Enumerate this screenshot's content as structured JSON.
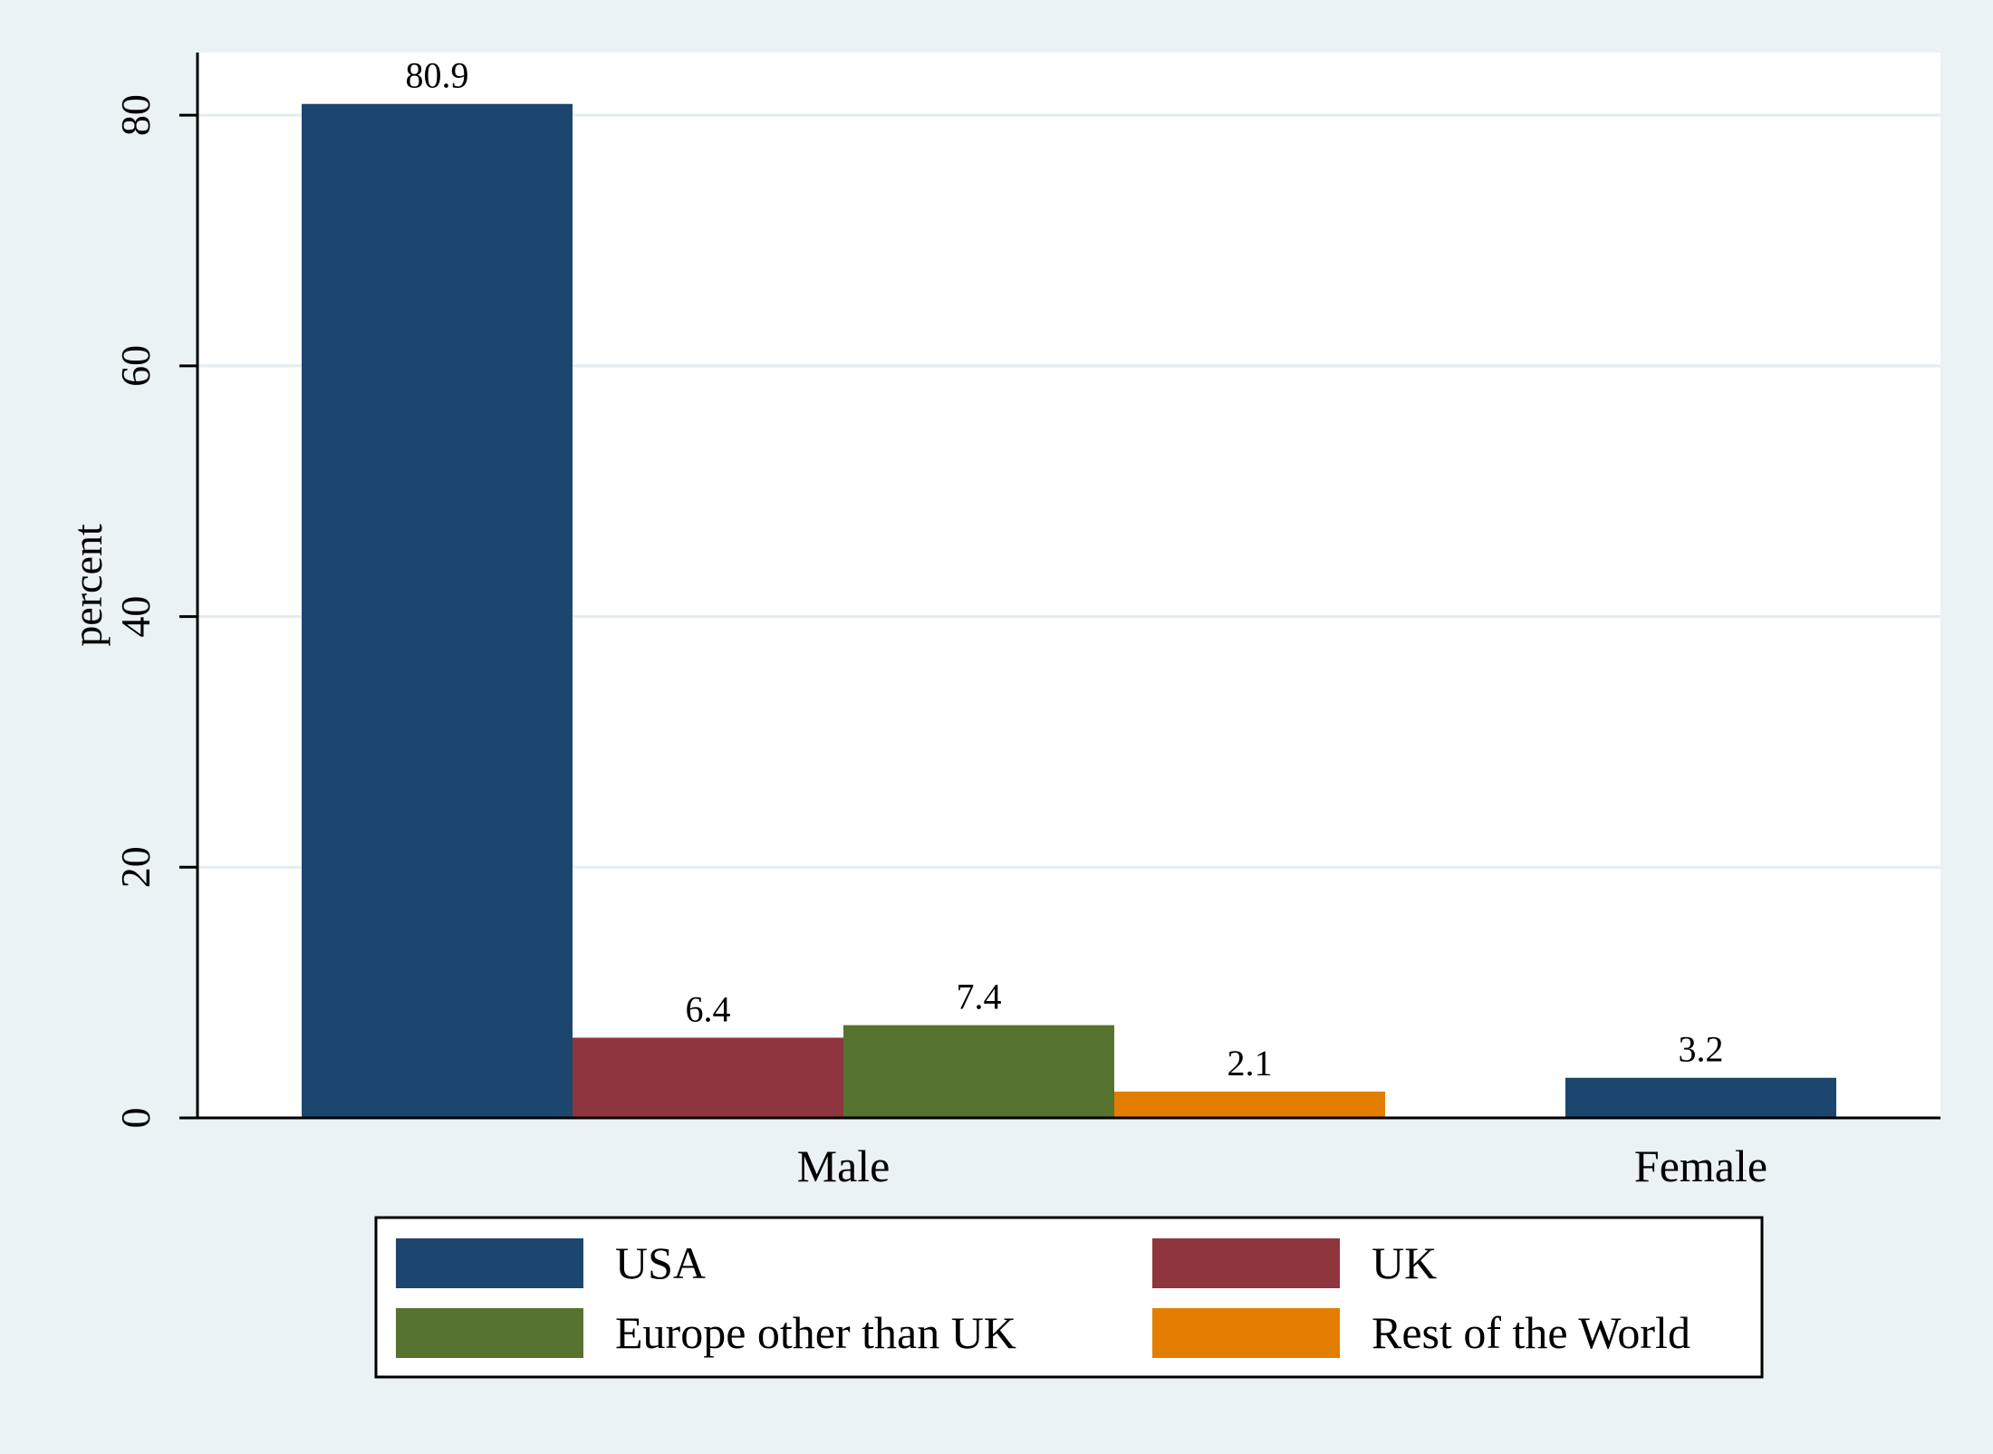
{
  "chart_data": {
    "type": "bar",
    "categories": [
      "Male",
      "Female"
    ],
    "series": [
      {
        "name": "USA",
        "color": "#1c466e",
        "values": [
          80.9,
          3.2
        ]
      },
      {
        "name": "UK",
        "color": "#8f353d",
        "values": [
          6.4,
          null
        ]
      },
      {
        "name": "Europe other than UK",
        "color": "#56732f",
        "values": [
          7.4,
          null
        ]
      },
      {
        "name": "Rest of the World",
        "color": "#e37e00",
        "values": [
          2.1,
          null
        ]
      }
    ],
    "title": "",
    "xlabel": "",
    "ylabel": "percent",
    "ylim": [
      0,
      85
    ],
    "yticks": [
      0,
      20,
      40,
      60,
      80
    ],
    "grid": true,
    "legend_position": "bottom",
    "plot_background": "#ffffff",
    "figure_background": "#eaf2f3"
  }
}
